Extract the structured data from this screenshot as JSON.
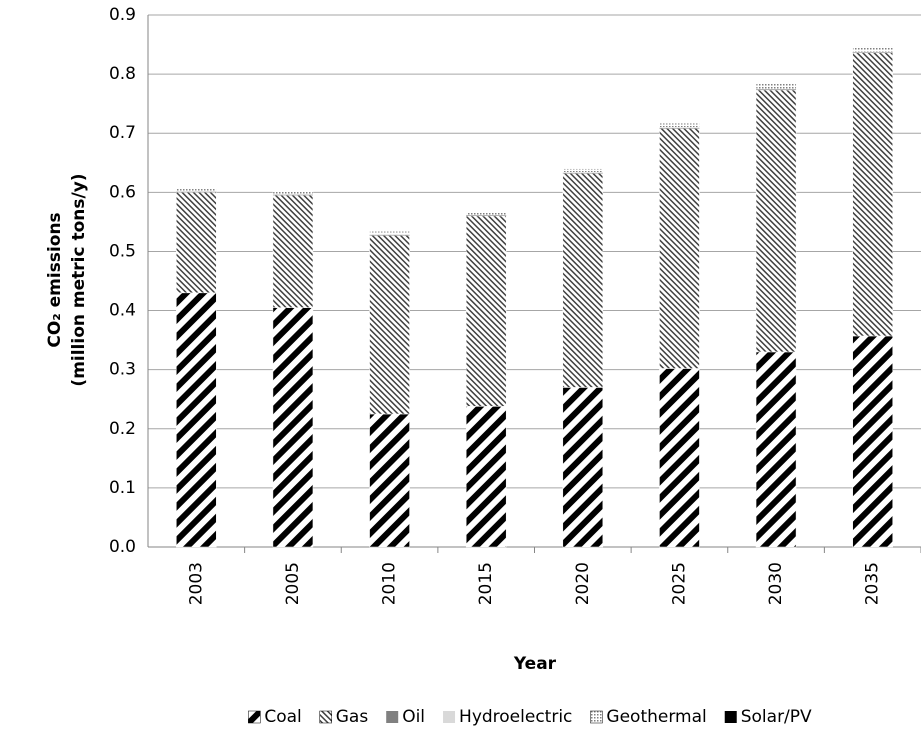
{
  "chart_data": {
    "type": "stacked-bar",
    "ylabel": [
      "CO₂ emissions",
      "(million metric tons/y)"
    ],
    "xlabel": "Year",
    "categories": [
      "2003",
      "2005",
      "2010",
      "2015",
      "2020",
      "2025",
      "2030",
      "2035"
    ],
    "series": [
      {
        "name": "Coal",
        "color": "#000000",
        "pattern": "wide-upward-diagonal",
        "values": [
          0.43,
          0.405,
          0.225,
          0.238,
          0.27,
          0.302,
          0.33,
          0.357
        ]
      },
      {
        "name": "Gas",
        "color": "#404040",
        "pattern": "downward-diagonal",
        "values": [
          0.17,
          0.19,
          0.302,
          0.322,
          0.362,
          0.406,
          0.443,
          0.479
        ]
      },
      {
        "name": "Oil",
        "color": "#808080",
        "pattern": "solid",
        "values": [
          0.001,
          0.001,
          0.001,
          0.001,
          0.001,
          0.001,
          0.001,
          0.001
        ]
      },
      {
        "name": "Hydroelectric",
        "color": "#d9d9d9",
        "pattern": "solid",
        "values": [
          0.001,
          0.001,
          0.001,
          0.001,
          0.001,
          0.001,
          0.001,
          0.001
        ]
      },
      {
        "name": "Geothermal",
        "color": "#808080",
        "pattern": "dotted",
        "values": [
          0.004,
          0.004,
          0.005,
          0.006,
          0.006,
          0.007,
          0.009,
          0.009
        ]
      },
      {
        "name": "Solar/PV",
        "color": "#000000",
        "pattern": "solid",
        "values": [
          0,
          0,
          0,
          0,
          0,
          0,
          0,
          0
        ]
      }
    ],
    "ylim": [
      0,
      0.9
    ],
    "yticks": [
      {
        "value": 0,
        "label": "0.0"
      },
      0.1,
      0.2,
      0.3,
      0.4,
      0.5,
      0.6,
      0.7,
      0.8,
      0.9
    ],
    "grid": true,
    "legend": "bottom"
  }
}
